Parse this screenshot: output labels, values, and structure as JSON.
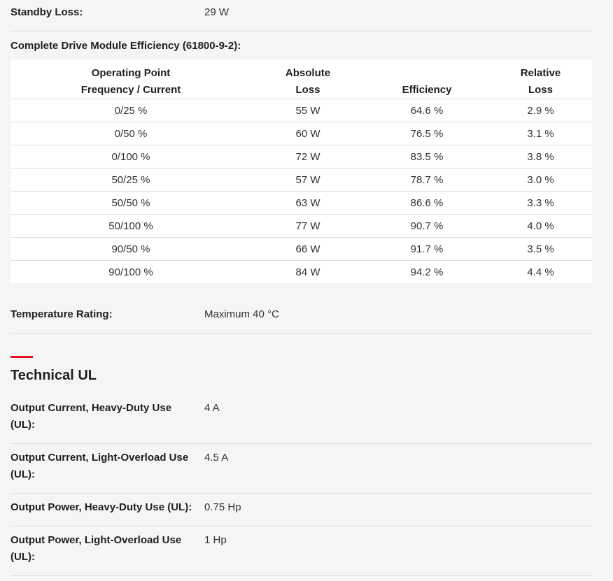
{
  "standby_loss": {
    "label": "Standby Loss:",
    "value": "29 W"
  },
  "efficiency": {
    "caption": "Complete Drive Module Efficiency (61800-9-2):",
    "headers": [
      {
        "line1": "Operating Point",
        "line2": "Frequency / Current"
      },
      {
        "line1": "Absolute",
        "line2": "Loss"
      },
      {
        "line1": "",
        "line2": "Efficiency"
      },
      {
        "line1": "Relative",
        "line2": "Loss"
      }
    ],
    "rows": [
      [
        "0/25 %",
        "55 W",
        "64.6 %",
        "2.9 %"
      ],
      [
        "0/50 %",
        "60 W",
        "76.5 %",
        "3.1 %"
      ],
      [
        "0/100 %",
        "72 W",
        "83.5 %",
        "3.8 %"
      ],
      [
        "50/25 %",
        "57 W",
        "78.7 %",
        "3.0 %"
      ],
      [
        "50/50 %",
        "63 W",
        "86.6 %",
        "3.3 %"
      ],
      [
        "50/100 %",
        "77 W",
        "90.7 %",
        "4.0 %"
      ],
      [
        "90/50 %",
        "66 W",
        "91.7 %",
        "3.5 %"
      ],
      [
        "90/100 %",
        "84 W",
        "94.2 %",
        "4.4 %"
      ]
    ]
  },
  "temperature": {
    "label": "Temperature Rating:",
    "value": "Maximum 40 °C"
  },
  "technical_ul": {
    "title": "Technical UL",
    "accent_color": "#e4141e",
    "specs": [
      {
        "label_line1": "Output Current, Heavy-Duty Use",
        "label_line2": "(UL):",
        "value": "4 A"
      },
      {
        "label_line1": "Output Current, Light-Overload Use",
        "label_line2": "(UL):",
        "value": "4.5 A"
      },
      {
        "label_line1": "Output Power, Heavy-Duty Use (UL):",
        "label_line2": "",
        "value": "0.75 Hp"
      },
      {
        "label_line1": "Output Power, Light-Overload Use",
        "label_line2": "(UL):",
        "value": "1 Hp"
      }
    ]
  }
}
